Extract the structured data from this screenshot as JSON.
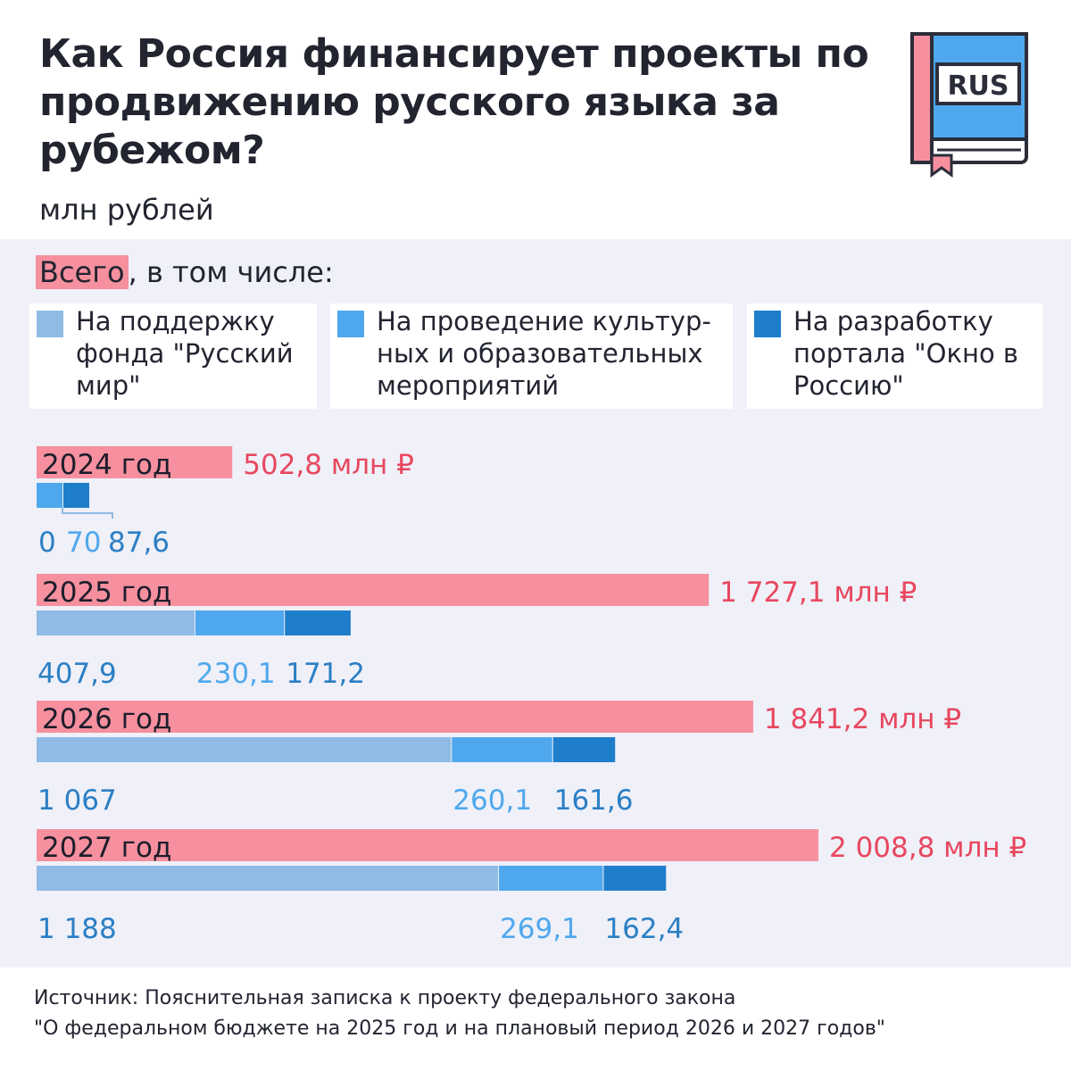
{
  "header": {
    "title": "Как Россия финансирует проекты по продвижению русского языка за рубежом?",
    "units": "млн рублей",
    "badge": "RUS"
  },
  "total_label": {
    "highlight": "Всего",
    "rest": ", в том числе:"
  },
  "legend": [
    {
      "label": "На поддержку фонда \"Русский мир\"",
      "color": "#8fbbe4"
    },
    {
      "label": "На проведение культур-ных и образовательных мероприятий",
      "color": "#4fa8ee"
    },
    {
      "label": "На разработку портала \"Окно в Россию\"",
      "color": "#1f7ecb"
    }
  ],
  "colors": {
    "total": "#f6909e",
    "total_text": "#e8475f",
    "russkiy_mir": "#8fbbe4",
    "events": "#4fa8ee",
    "portal": "#1f7ecb",
    "panel_bg": "#eff0f8"
  },
  "chart_data": {
    "type": "bar",
    "title": "Как Россия финансирует проекты по продвижению русского языка за рубежом?",
    "ylabel": "млн рублей",
    "categories": [
      "2024 год",
      "2025 год",
      "2026 год",
      "2027 год"
    ],
    "totals": [
      502.8,
      1727.1,
      1841.2,
      2008.8
    ],
    "total_labels": [
      "502,8 млн ₽",
      "1 727,1 млн ₽",
      "1 841,2 млн ₽",
      "2 008,8 млн ₽"
    ],
    "series": [
      {
        "name": "На поддержку фонда \"Русский мир\"",
        "values": [
          0,
          407.9,
          1067,
          1188
        ],
        "labels": [
          "0",
          "407,9",
          "1 067",
          "1 188"
        ]
      },
      {
        "name": "На проведение культурных и образовательных мероприятий",
        "values": [
          70,
          230.1,
          260.1,
          269.1
        ],
        "labels": [
          "70",
          "230,1",
          "260,1",
          "269,1"
        ]
      },
      {
        "name": "На разработку портала \"Окно в Россию\"",
        "values": [
          87.6,
          171.2,
          161.6,
          162.4
        ],
        "labels": [
          "87,6",
          "171,2",
          "161,6",
          "162,4"
        ]
      }
    ]
  },
  "source": {
    "line1": "Источник: Пояснительная записка к проекту федерального закона",
    "line2": "\"О федеральном бюджете на 2025 год и на плановый период 2026 и 2027 годов\""
  }
}
